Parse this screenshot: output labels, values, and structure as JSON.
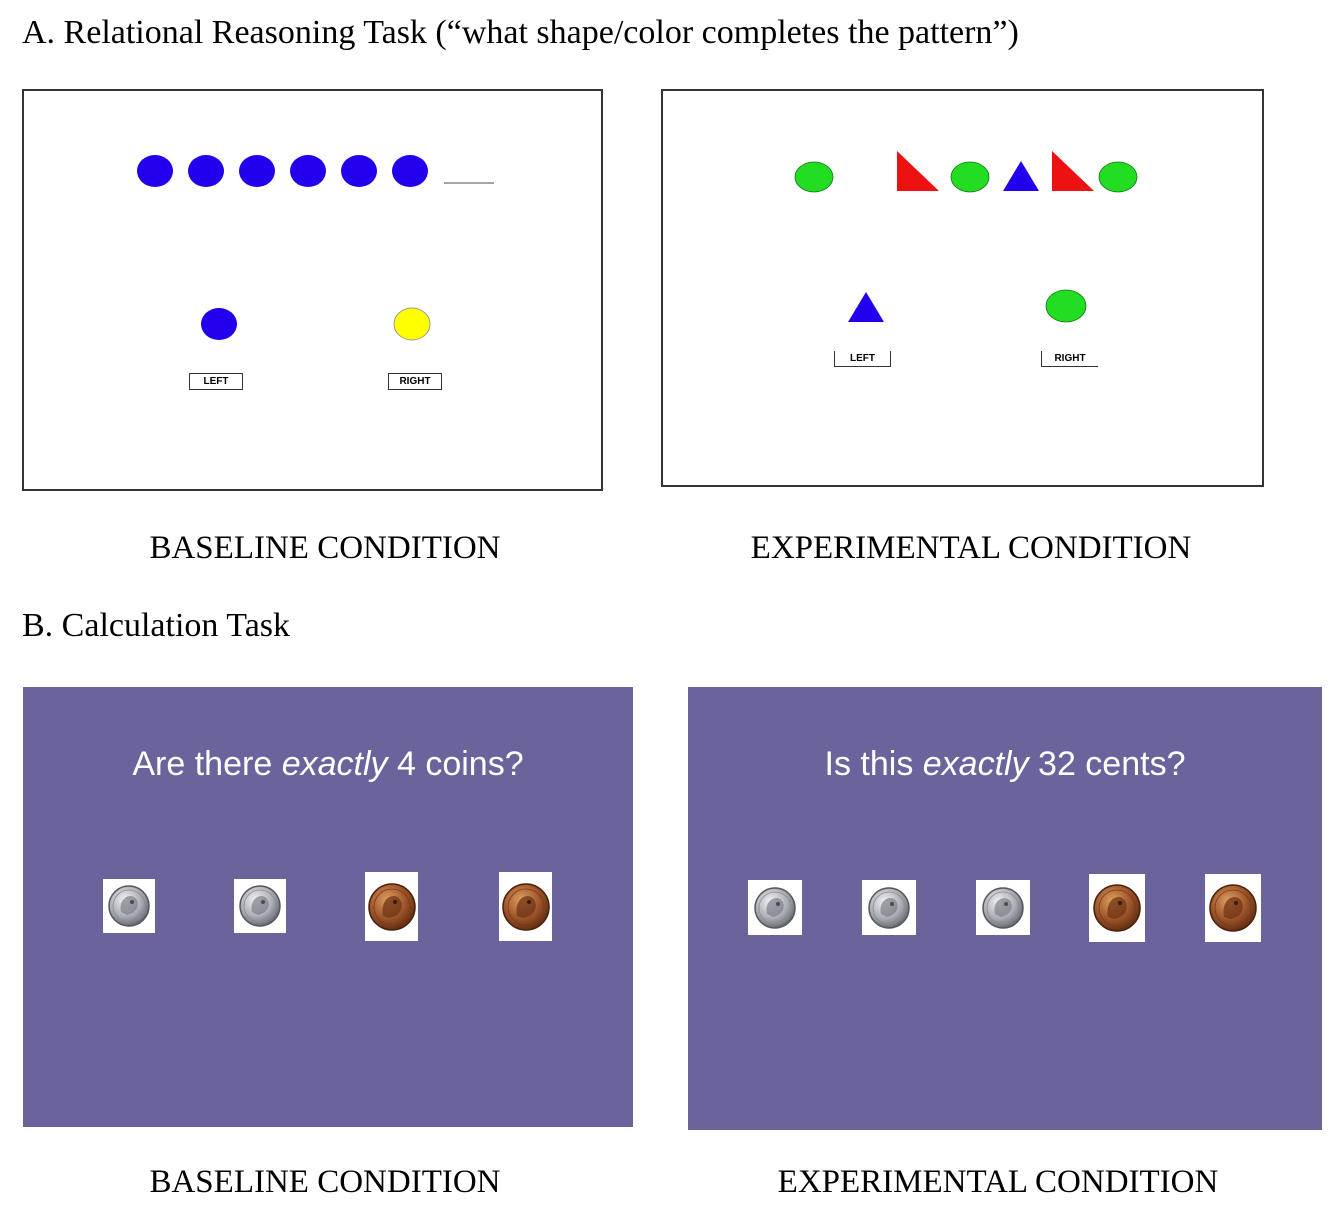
{
  "section_a": {
    "heading": "A.  Relational Reasoning Task (“what shape/color completes the pattern”)",
    "baseline": {
      "left_button": "LEFT",
      "right_button": "RIGHT",
      "condition_label": "BASELINE CONDITION"
    },
    "experimental": {
      "left_button": "LEFT",
      "right_button": "RIGHT",
      "condition_label": "EXPERIMENTAL CONDITION"
    }
  },
  "section_b": {
    "heading": "B. Calculation Task",
    "baseline": {
      "question_pre": "Are there ",
      "question_emph": "exactly",
      "question_post": " 4 coins?",
      "condition_label": "BASELINE CONDITION",
      "coins": [
        "dime",
        "dime",
        "penny",
        "penny"
      ]
    },
    "experimental": {
      "question_pre": "Is this ",
      "question_emph": "exactly",
      "question_post": " 32 cents?",
      "condition_label": "EXPERIMENTAL CONDITION",
      "coins": [
        "dime",
        "dime",
        "dime",
        "penny",
        "penny"
      ]
    }
  },
  "colors": {
    "blue": "#2200ee",
    "yellow": "#ffff00",
    "green": "#22dd22",
    "red": "#ee1111",
    "slide_purple": "#6b649c"
  }
}
